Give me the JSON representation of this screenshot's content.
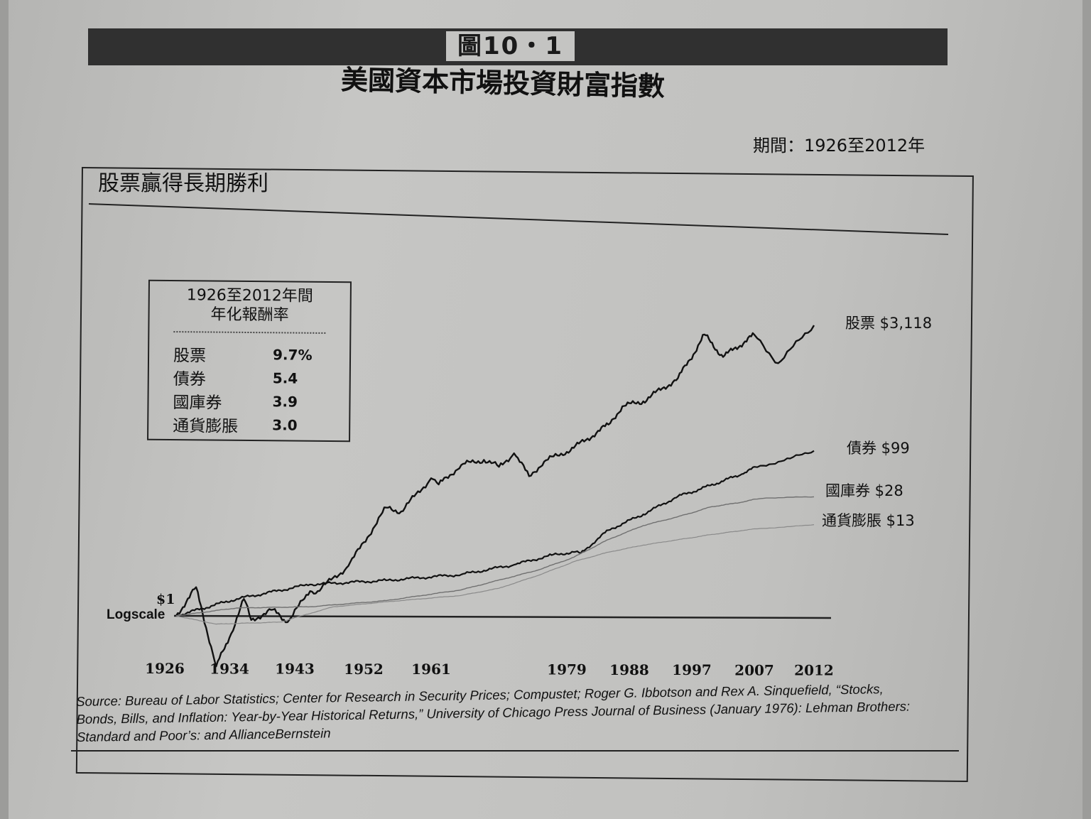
{
  "figure": {
    "label": "圖10・1",
    "title": "美國資本市場投資財富指數",
    "period": "期間：1926至2012年"
  },
  "chart_title": "股票贏得長期勝利",
  "returns_box": {
    "heading_line1": "1926至2012年間",
    "heading_line2": "年化報酬率",
    "rows": [
      {
        "name": "股票",
        "value": "9.7%"
      },
      {
        "name": "債券",
        "value": "5.4"
      },
      {
        "name": "國庫券",
        "value": "3.9"
      },
      {
        "name": "通貨膨脹",
        "value": "3.0"
      }
    ]
  },
  "source_text": "Source: Bureau of Labor Statistics; Center for Research in Security Prices; Compustet; Roger G. Ibbotson and Rex A. Sinquefield, “Stocks, Bonds, Bills, and Inflation: Year-by-Year Historical Returns,” University of Chicago Press Journal of Business (January 1976): Lehman Brothers: Standard and Poor’s: and AllianceBernstein",
  "chart_data": {
    "type": "line",
    "x_ticks": [
      "1926",
      "1934",
      "1943",
      "1952",
      "1961",
      "1979",
      "1988",
      "1997",
      "2007",
      "2012"
    ],
    "y_scale": "log",
    "baseline_label": "$1",
    "scale_label": "Logscale",
    "line_colors": {
      "stocks": "#111111",
      "bonds": "#111111",
      "bills": "#707070",
      "inflation": "#8a8a8a"
    },
    "series": [
      {
        "name": "股票",
        "end_label": "股票 $3,118",
        "points": [
          [
            1926,
            1
          ],
          [
            1929,
            2.2
          ],
          [
            1932,
            0.25
          ],
          [
            1934,
            0.55
          ],
          [
            1936,
            1.6
          ],
          [
            1937,
            0.9
          ],
          [
            1940,
            1.2
          ],
          [
            1942,
            0.85
          ],
          [
            1945,
            2.0
          ],
          [
            1946,
            2.0
          ],
          [
            1950,
            4.0
          ],
          [
            1955,
            20
          ],
          [
            1957,
            18
          ],
          [
            1961,
            45
          ],
          [
            1962,
            38
          ],
          [
            1965,
            65
          ],
          [
            1968,
            75
          ],
          [
            1970,
            62
          ],
          [
            1972,
            90
          ],
          [
            1974,
            48
          ],
          [
            1976,
            72
          ],
          [
            1980,
            105
          ],
          [
            1985,
            200
          ],
          [
            1987,
            330
          ],
          [
            1990,
            380
          ],
          [
            1995,
            720
          ],
          [
            1999,
            2400
          ],
          [
            2002,
            1300
          ],
          [
            2007,
            2400
          ],
          [
            2009,
            1100
          ],
          [
            2012,
            3118
          ]
        ]
      },
      {
        "name": "債券",
        "end_label": "債券 $99",
        "points": [
          [
            1926,
            1
          ],
          [
            1935,
            1.6
          ],
          [
            1945,
            2.4
          ],
          [
            1955,
            2.7
          ],
          [
            1965,
            3.2
          ],
          [
            1972,
            4.2
          ],
          [
            1977,
            5.5
          ],
          [
            1980,
            6
          ],
          [
            1981,
            5.8
          ],
          [
            1985,
            11
          ],
          [
            1990,
            17
          ],
          [
            1995,
            28
          ],
          [
            2000,
            38
          ],
          [
            2005,
            52
          ],
          [
            2010,
            80
          ],
          [
            2012,
            99
          ]
        ]
      },
      {
        "name": "國庫券",
        "end_label": "國庫券 $28",
        "points": [
          [
            1926,
            1
          ],
          [
            1935,
            1.25
          ],
          [
            1945,
            1.3
          ],
          [
            1955,
            1.55
          ],
          [
            1965,
            2.1
          ],
          [
            1975,
            3.6
          ],
          [
            1980,
            5.2
          ],
          [
            1985,
            8.5
          ],
          [
            1990,
            12.5
          ],
          [
            1995,
            16
          ],
          [
            2000,
            21
          ],
          [
            2005,
            24
          ],
          [
            2008,
            27
          ],
          [
            2012,
            28
          ]
        ]
      },
      {
        "name": "通貨膨脹",
        "end_label": "通貨膨脹 $13",
        "points": [
          [
            1926,
            1
          ],
          [
            1932,
            0.8
          ],
          [
            1941,
            0.85
          ],
          [
            1948,
            1.3
          ],
          [
            1955,
            1.5
          ],
          [
            1965,
            1.8
          ],
          [
            1970,
            2.2
          ],
          [
            1975,
            3.1
          ],
          [
            1980,
            4.6
          ],
          [
            1985,
            6
          ],
          [
            1990,
            7.3
          ],
          [
            1995,
            8.5
          ],
          [
            2000,
            9.8
          ],
          [
            2005,
            11
          ],
          [
            2010,
            12.3
          ],
          [
            2012,
            13
          ]
        ]
      }
    ]
  }
}
